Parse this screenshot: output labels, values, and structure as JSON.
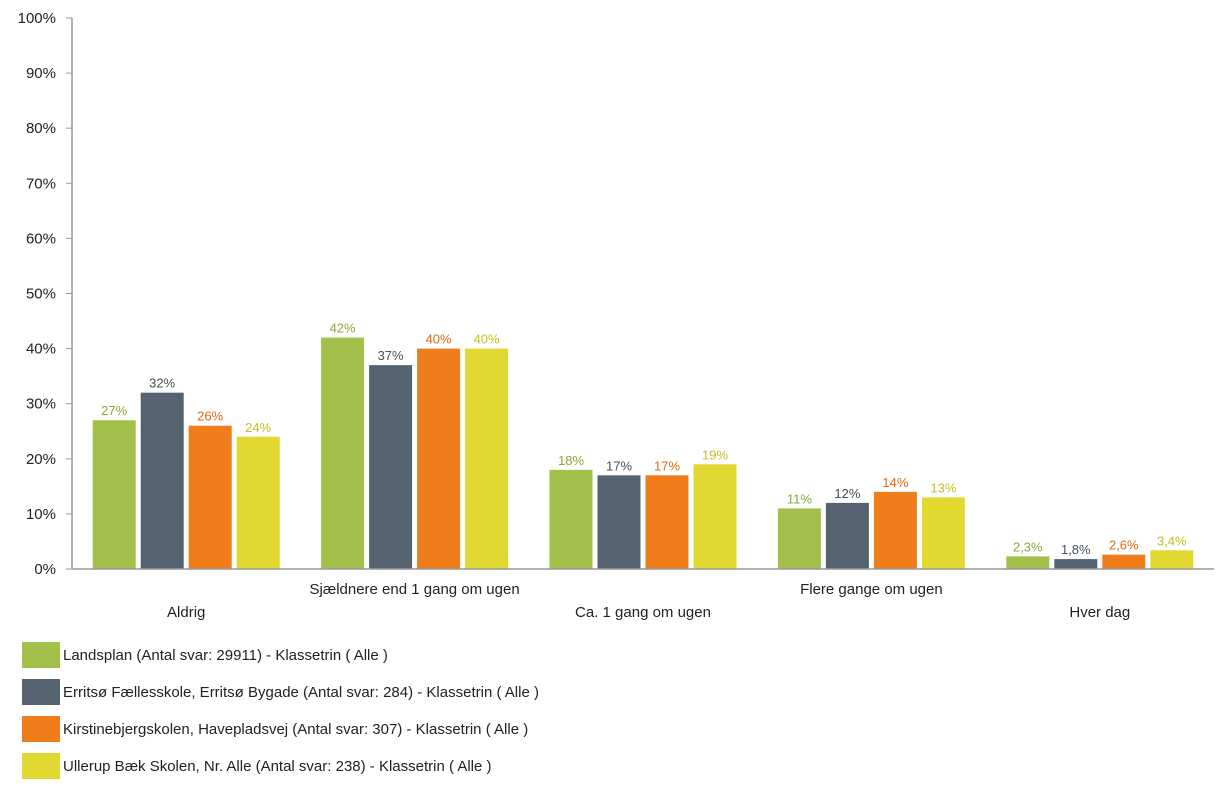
{
  "chart_data": {
    "type": "bar",
    "categories": [
      "Aldrig",
      "Sjældnere end 1 gang om ugen",
      "Ca. 1 gang om ugen",
      "Flere gange om ugen",
      "Hver dag"
    ],
    "series": [
      {
        "name": "Landsplan (Antal svar: 29911)  - Klassetrin ( Alle )",
        "color": "#a2c04a",
        "values": [
          27,
          42,
          18,
          11,
          2.3
        ],
        "labels": [
          "27%",
          "42%",
          "18%",
          "11%",
          "2,3%"
        ]
      },
      {
        "name": "Erritsø Fællesskole, Erritsø Bygade (Antal svar: 284)  - Klassetrin ( Alle )",
        "color": "#556371",
        "values": [
          32,
          37,
          17,
          12,
          1.8
        ],
        "labels": [
          "32%",
          "37%",
          "17%",
          "12%",
          "1,8%"
        ]
      },
      {
        "name": "Kirstinebjergskolen, Havepladsvej (Antal svar: 307)  - Klassetrin ( Alle )",
        "color": "#f07d1c",
        "values": [
          26,
          40,
          17,
          14,
          2.6
        ],
        "labels": [
          "26%",
          "40%",
          "17%",
          "14%",
          "2,6%"
        ]
      },
      {
        "name": "Ullerup Bæk Skolen, Nr. Alle (Antal svar: 238)  - Klassetrin ( Alle )",
        "color": "#e2d832",
        "values": [
          24,
          40,
          19,
          13,
          3.4
        ],
        "labels": [
          "24%",
          "40%",
          "19%",
          "13%",
          "3,4%"
        ]
      }
    ],
    "ylim": [
      0,
      100
    ],
    "yticks": [
      "0%",
      "10%",
      "20%",
      "30%",
      "40%",
      "50%",
      "60%",
      "70%",
      "80%",
      "90%",
      "100%"
    ],
    "label_colors": [
      "#8aa83a",
      "#444f5a",
      "#e06a0e",
      "#c6bd22"
    ],
    "grid": false,
    "legend_position": "bottom-left"
  }
}
